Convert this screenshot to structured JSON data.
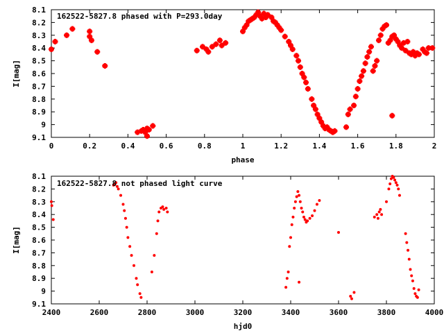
{
  "chart_data": [
    {
      "type": "scatter",
      "title": "162522-5827.8 phased with P=293.0day",
      "xlabel": "phase",
      "ylabel": "I[mag]",
      "xlim": [
        0,
        2
      ],
      "ylim": [
        9.1,
        8.1
      ],
      "y_inverted": true,
      "x_ticks": [
        "0",
        "0.2",
        "0.4",
        "0.6",
        "0.8",
        "1",
        "1.2",
        "1.4",
        "1.6",
        "1.8",
        "2"
      ],
      "y_ticks": [
        "8.1",
        "8.2",
        "8.3",
        "8.4",
        "8.5",
        "8.6",
        "8.7",
        "8.8",
        "8.9",
        "9",
        "9.1"
      ],
      "grid": false,
      "marker": "star",
      "color": "#ff0000",
      "points": [
        [
          0.0,
          8.41
        ],
        [
          0.02,
          8.35
        ],
        [
          0.08,
          8.3
        ],
        [
          0.11,
          8.25
        ],
        [
          0.2,
          8.27
        ],
        [
          0.2,
          8.31
        ],
        [
          0.21,
          8.34
        ],
        [
          0.24,
          8.43
        ],
        [
          0.28,
          8.54
        ],
        [
          0.45,
          9.06
        ],
        [
          0.47,
          9.05
        ],
        [
          0.48,
          9.04
        ],
        [
          0.49,
          9.06
        ],
        [
          0.5,
          9.03
        ],
        [
          0.5,
          9.09
        ],
        [
          0.51,
          9.04
        ],
        [
          0.53,
          9.01
        ],
        [
          0.76,
          8.42
        ],
        [
          0.79,
          8.39
        ],
        [
          0.81,
          8.41
        ],
        [
          0.82,
          8.43
        ],
        [
          0.84,
          8.39
        ],
        [
          0.86,
          8.37
        ],
        [
          0.88,
          8.34
        ],
        [
          0.89,
          8.38
        ],
        [
          0.91,
          8.36
        ],
        [
          1.0,
          8.27
        ],
        [
          1.01,
          8.24
        ],
        [
          1.02,
          8.22
        ],
        [
          1.03,
          8.19
        ],
        [
          1.04,
          8.18
        ],
        [
          1.05,
          8.17
        ],
        [
          1.06,
          8.16
        ],
        [
          1.07,
          8.14
        ],
        [
          1.08,
          8.12
        ],
        [
          1.09,
          8.15
        ],
        [
          1.1,
          8.17
        ],
        [
          1.11,
          8.13
        ],
        [
          1.12,
          8.16
        ],
        [
          1.13,
          8.14
        ],
        [
          1.15,
          8.16
        ],
        [
          1.16,
          8.19
        ],
        [
          1.17,
          8.2
        ],
        [
          1.18,
          8.22
        ],
        [
          1.19,
          8.24
        ],
        [
          1.2,
          8.26
        ],
        [
          1.22,
          8.31
        ],
        [
          1.24,
          8.35
        ],
        [
          1.25,
          8.38
        ],
        [
          1.26,
          8.41
        ],
        [
          1.28,
          8.46
        ],
        [
          1.29,
          8.5
        ],
        [
          1.3,
          8.55
        ],
        [
          1.31,
          8.6
        ],
        [
          1.32,
          8.63
        ],
        [
          1.33,
          8.67
        ],
        [
          1.34,
          8.72
        ],
        [
          1.36,
          8.8
        ],
        [
          1.37,
          8.85
        ],
        [
          1.38,
          8.88
        ],
        [
          1.39,
          8.92
        ],
        [
          1.4,
          8.95
        ],
        [
          1.41,
          8.98
        ],
        [
          1.42,
          9.01
        ],
        [
          1.43,
          9.03
        ],
        [
          1.44,
          9.02
        ],
        [
          1.45,
          9.04
        ],
        [
          1.46,
          9.05
        ],
        [
          1.47,
          9.06
        ],
        [
          1.48,
          9.05
        ],
        [
          1.54,
          9.02
        ],
        [
          1.55,
          8.92
        ],
        [
          1.56,
          8.88
        ],
        [
          1.58,
          8.85
        ],
        [
          1.59,
          8.78
        ],
        [
          1.6,
          8.72
        ],
        [
          1.61,
          8.66
        ],
        [
          1.62,
          8.62
        ],
        [
          1.63,
          8.58
        ],
        [
          1.64,
          8.52
        ],
        [
          1.65,
          8.47
        ],
        [
          1.66,
          8.43
        ],
        [
          1.67,
          8.39
        ],
        [
          1.68,
          8.58
        ],
        [
          1.69,
          8.54
        ],
        [
          1.7,
          8.5
        ],
        [
          1.71,
          8.34
        ],
        [
          1.72,
          8.3
        ],
        [
          1.73,
          8.25
        ],
        [
          1.74,
          8.23
        ],
        [
          1.75,
          8.22
        ],
        [
          1.76,
          8.36
        ],
        [
          1.77,
          8.34
        ],
        [
          1.78,
          8.31
        ],
        [
          1.79,
          8.3
        ],
        [
          1.78,
          8.93
        ],
        [
          1.8,
          8.33
        ],
        [
          1.81,
          8.35
        ],
        [
          1.82,
          8.38
        ],
        [
          1.83,
          8.4
        ],
        [
          1.84,
          8.36
        ],
        [
          1.85,
          8.42
        ],
        [
          1.86,
          8.35
        ],
        [
          1.87,
          8.44
        ],
        [
          1.88,
          8.45
        ],
        [
          1.89,
          8.43
        ],
        [
          1.9,
          8.46
        ],
        [
          1.91,
          8.44
        ],
        [
          1.92,
          8.45
        ],
        [
          1.94,
          8.41
        ],
        [
          1.95,
          8.43
        ],
        [
          1.96,
          8.44
        ],
        [
          1.97,
          8.4
        ],
        [
          1.99,
          8.4
        ]
      ]
    },
    {
      "type": "scatter",
      "title": "162522-5827.8 not phased light curve",
      "xlabel": "hjd0",
      "ylabel": "I[mag]",
      "xlim": [
        2400,
        4000
      ],
      "ylim": [
        9.1,
        8.1
      ],
      "y_inverted": true,
      "x_ticks": [
        "2400",
        "2600",
        "2800",
        "3000",
        "3200",
        "3400",
        "3600",
        "3800",
        "4000"
      ],
      "y_ticks": [
        "8.1",
        "8.2",
        "8.3",
        "8.4",
        "8.5",
        "8.6",
        "8.7",
        "8.8",
        "8.9",
        "9",
        "9.1"
      ],
      "grid": false,
      "marker": "dot",
      "color": "#ff0000",
      "points": [
        [
          2400,
          8.3
        ],
        [
          2402,
          8.33
        ],
        [
          2408,
          8.44
        ],
        [
          2660,
          8.17
        ],
        [
          2665,
          8.16
        ],
        [
          2670,
          8.15
        ],
        [
          2675,
          8.18
        ],
        [
          2680,
          8.2
        ],
        [
          2690,
          8.25
        ],
        [
          2700,
          8.32
        ],
        [
          2705,
          8.37
        ],
        [
          2710,
          8.43
        ],
        [
          2715,
          8.5
        ],
        [
          2720,
          8.58
        ],
        [
          2728,
          8.65
        ],
        [
          2735,
          8.72
        ],
        [
          2745,
          8.8
        ],
        [
          2755,
          8.9
        ],
        [
          2760,
          8.95
        ],
        [
          2770,
          9.02
        ],
        [
          2775,
          9.05
        ],
        [
          2820,
          8.85
        ],
        [
          2830,
          8.72
        ],
        [
          2840,
          8.55
        ],
        [
          2845,
          8.45
        ],
        [
          2850,
          8.38
        ],
        [
          2858,
          8.35
        ],
        [
          2865,
          8.34
        ],
        [
          2870,
          8.36
        ],
        [
          2880,
          8.35
        ],
        [
          2885,
          8.38
        ],
        [
          3380,
          8.97
        ],
        [
          3385,
          8.9
        ],
        [
          3390,
          8.85
        ],
        [
          3395,
          8.65
        ],
        [
          3400,
          8.58
        ],
        [
          3405,
          8.48
        ],
        [
          3410,
          8.42
        ],
        [
          3415,
          8.35
        ],
        [
          3420,
          8.3
        ],
        [
          3425,
          8.26
        ],
        [
          3430,
          8.22
        ],
        [
          3435,
          8.25
        ],
        [
          3440,
          8.3
        ],
        [
          3445,
          8.35
        ],
        [
          3450,
          8.38
        ],
        [
          3455,
          8.42
        ],
        [
          3460,
          8.44
        ],
        [
          3465,
          8.46
        ],
        [
          3470,
          8.45
        ],
        [
          3480,
          8.43
        ],
        [
          3490,
          8.41
        ],
        [
          3500,
          8.37
        ],
        [
          3510,
          8.32
        ],
        [
          3520,
          8.29
        ],
        [
          3435,
          8.93
        ],
        [
          3600,
          8.54
        ],
        [
          3650,
          9.04
        ],
        [
          3655,
          9.06
        ],
        [
          3665,
          9.01
        ],
        [
          3750,
          8.42
        ],
        [
          3760,
          8.4
        ],
        [
          3765,
          8.43
        ],
        [
          3770,
          8.38
        ],
        [
          3775,
          8.36
        ],
        [
          3780,
          8.4
        ],
        [
          3800,
          8.3
        ],
        [
          3810,
          8.2
        ],
        [
          3815,
          8.16
        ],
        [
          3820,
          8.12
        ],
        [
          3825,
          8.1
        ],
        [
          3830,
          8.11
        ],
        [
          3835,
          8.13
        ],
        [
          3840,
          8.15
        ],
        [
          3845,
          8.17
        ],
        [
          3850,
          8.2
        ],
        [
          3855,
          8.25
        ],
        [
          3880,
          8.55
        ],
        [
          3885,
          8.62
        ],
        [
          3890,
          8.68
        ],
        [
          3895,
          8.75
        ],
        [
          3900,
          8.83
        ],
        [
          3905,
          8.88
        ],
        [
          3910,
          8.92
        ],
        [
          3915,
          8.98
        ],
        [
          3920,
          9.02
        ],
        [
          3925,
          9.04
        ],
        [
          3930,
          9.05
        ],
        [
          3935,
          8.99
        ]
      ]
    }
  ]
}
